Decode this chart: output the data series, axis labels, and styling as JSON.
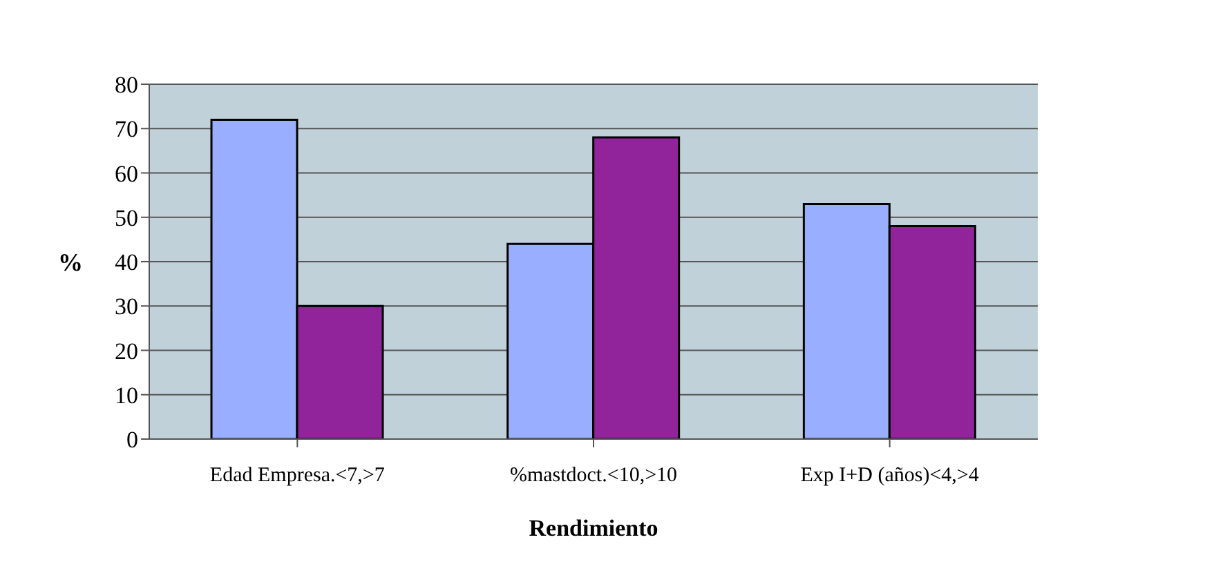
{
  "chart_data": {
    "type": "bar",
    "xlabel": "Rendimiento",
    "ylabel": "%",
    "categories": [
      "Edad Empresa.<7,>7",
      "%mastdoct.<10,>10",
      "Exp I+D (años)<4,>4"
    ],
    "series": [
      {
        "color": "#9aaeff",
        "values": [
          72,
          44,
          53
        ]
      },
      {
        "color": "#91239b",
        "values": [
          30,
          68,
          48
        ]
      }
    ],
    "ylim": [
      0,
      80
    ],
    "yticks": [
      0,
      10,
      20,
      30,
      40,
      50,
      60,
      70,
      80
    ],
    "grid": "y",
    "legend": false
  }
}
